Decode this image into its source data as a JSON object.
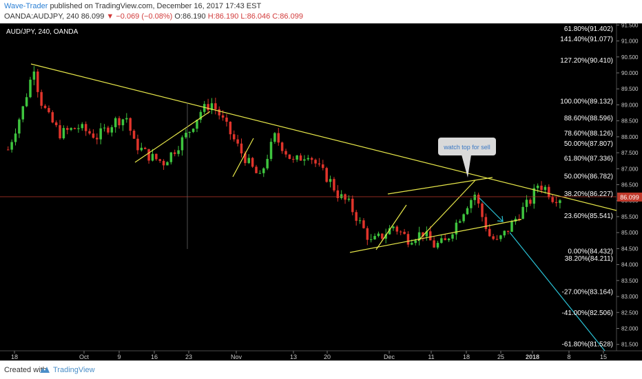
{
  "header": {
    "author": "Wave-Trader",
    "published_text": "published on TradingView.com, December 16, 2017 17:43 EST",
    "symbol_label": "OANDA:AUDJPY, 240",
    "last_price": "86.099",
    "change": "▼ −0.069 (−0.08%)",
    "open": "O:86.190",
    "high": "H:86.190",
    "low": "L:86.046",
    "close": "C:86.099"
  },
  "chart": {
    "symbol_title": "AUD/JPY, 240, OANDA",
    "price_tag": "86.099",
    "callout": "watch top for sell",
    "colors": {
      "background": "#000000",
      "up_candle": "#3ec43e",
      "down_candle": "#e0342b",
      "trendline": "#e8e84a",
      "projection": "#2ac4d8",
      "price_line": "#c0392b",
      "axis_text": "#cccccc",
      "fib_text": "#ffffff"
    }
  },
  "chart_data": {
    "type": "candlestick",
    "title": "AUD/JPY, 240, OANDA",
    "y_range": [
      81.3,
      91.55
    ],
    "y_ticks": [
      "91.500",
      "91.000",
      "90.500",
      "90.000",
      "89.500",
      "89.000",
      "88.500",
      "88.000",
      "87.500",
      "87.000",
      "86.500",
      "86.000",
      "85.500",
      "85.000",
      "84.500",
      "84.000",
      "83.500",
      "83.000",
      "82.500",
      "82.000",
      "81.500"
    ],
    "x_ticks": [
      "18",
      "Oct",
      "9",
      "16",
      "23",
      "Nov",
      "13",
      "20",
      "Dec",
      "11",
      "18",
      "25",
      "2018",
      "8",
      "15"
    ],
    "last_close": 86.099,
    "price_path": [
      [
        0,
        87.6
      ],
      [
        4,
        88.9
      ],
      [
        7,
        90.2
      ],
      [
        8.5,
        89.2
      ],
      [
        11,
        88.6
      ],
      [
        14,
        88.1
      ],
      [
        19,
        88.3
      ],
      [
        24,
        88.0
      ],
      [
        29,
        88.5
      ],
      [
        32,
        88.6
      ],
      [
        34,
        87.8
      ],
      [
        38,
        87.4
      ],
      [
        42,
        87.2
      ],
      [
        45,
        87.6
      ],
      [
        49,
        88.2
      ],
      [
        52,
        88.8
      ],
      [
        55,
        89.05
      ],
      [
        57,
        88.7
      ],
      [
        60,
        88.1
      ],
      [
        63,
        87.5
      ],
      [
        66,
        87.0
      ],
      [
        68,
        86.7
      ],
      [
        70,
        87.4
      ],
      [
        72,
        88.0
      ],
      [
        74,
        87.7
      ],
      [
        77,
        87.2
      ],
      [
        81,
        87.5
      ],
      [
        84,
        87.0
      ],
      [
        87,
        86.6
      ],
      [
        89,
        86.2
      ],
      [
        92,
        85.9
      ],
      [
        95,
        85.3
      ],
      [
        98,
        84.7
      ],
      [
        101,
        84.9
      ],
      [
        104,
        85.2
      ],
      [
        108,
        84.8
      ],
      [
        112,
        85.0
      ],
      [
        115,
        84.6
      ],
      [
        118,
        84.7
      ],
      [
        121,
        85.3
      ],
      [
        124,
        85.9
      ],
      [
        126,
        86.2
      ],
      [
        128,
        85.5
      ],
      [
        130,
        84.9
      ],
      [
        132,
        84.7
      ],
      [
        135,
        85.1
      ],
      [
        138,
        85.6
      ],
      [
        141,
        86.0
      ],
      [
        143,
        86.5
      ],
      [
        145,
        86.4
      ],
      [
        147,
        86.1
      ],
      [
        149,
        86.1
      ]
    ],
    "fib_levels": [
      {
        "label": "61.80%(91.402)",
        "value": 91.402
      },
      {
        "label": "141.40%(91.077)",
        "value": 91.077
      },
      {
        "label": "127.20%(90.410)",
        "value": 90.41
      },
      {
        "label": "100.00%(89.132)",
        "value": 89.132
      },
      {
        "label": "88.60%(88.596)",
        "value": 88.596
      },
      {
        "label": "78.60%(88.126)",
        "value": 88.126
      },
      {
        "label": "50.00%(87.807)",
        "value": 87.807
      },
      {
        "label": "61.80%(87.336)",
        "value": 87.336
      },
      {
        "label": "50.00%(86.782)",
        "value": 86.782
      },
      {
        "label": "38.20%(86.227)",
        "value": 86.227
      },
      {
        "label": "23.60%(85.541)",
        "value": 85.541
      },
      {
        "label": "0.00%(84.432)",
        "value": 84.432
      },
      {
        "label": "38.20%(84.211)",
        "value": 84.211
      },
      {
        "label": "-27.00%(83.164)",
        "value": 83.164
      },
      {
        "label": "-41.00%(82.506)",
        "value": 82.506
      },
      {
        "label": "-61.80%(81.528)",
        "value": 81.528
      }
    ],
    "annotations": [
      "watch top for sell"
    ]
  },
  "footer": {
    "created_with": "Created with",
    "brand": "TradingView"
  }
}
